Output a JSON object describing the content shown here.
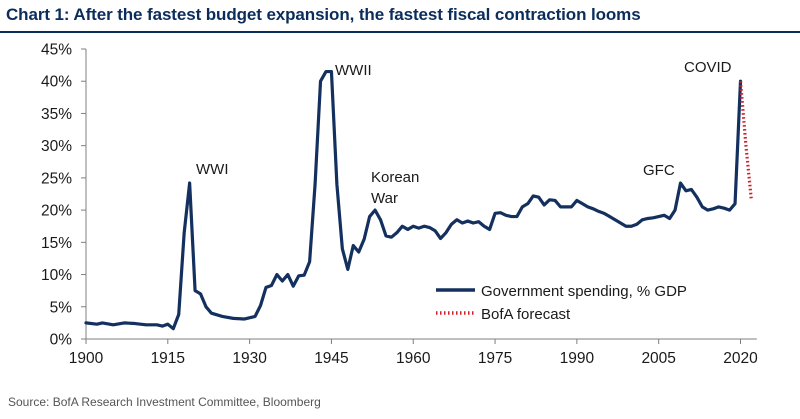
{
  "header": {
    "title": "Chart 1: After the fastest budget expansion, the fastest fiscal contraction looms"
  },
  "footer": {
    "source": "Source:  BofA Research Investment Committee, Bloomberg"
  },
  "colors": {
    "title": "#0b2d5c",
    "series_main": "#14305e",
    "series_forecast": "#d01f2a",
    "axis": "#7f7f7f",
    "text": "#1a1a1a"
  },
  "chart_data": {
    "type": "line",
    "title": "",
    "xlabel": "",
    "ylabel": "",
    "xlim": [
      1900,
      2023
    ],
    "ylim": [
      0,
      45
    ],
    "x_ticks": [
      1900,
      1915,
      1930,
      1945,
      1960,
      1975,
      1990,
      2005,
      2020
    ],
    "x_tick_labels": [
      "1900",
      "1915",
      "1930",
      "1945",
      "1960",
      "1975",
      "1990",
      "2005",
      "2020"
    ],
    "y_ticks": [
      0,
      5,
      10,
      15,
      20,
      25,
      30,
      35,
      40,
      45
    ],
    "y_tick_labels": [
      "0%",
      "5%",
      "10%",
      "15%",
      "20%",
      "25%",
      "30%",
      "35%",
      "40%",
      "45%"
    ],
    "grid": false,
    "legend_position": "bottom-right",
    "series": [
      {
        "name": "Government spending, % GDP",
        "style": "solid",
        "points": [
          [
            1900,
            2.5
          ],
          [
            1902,
            2.3
          ],
          [
            1903,
            2.5
          ],
          [
            1905,
            2.2
          ],
          [
            1907,
            2.5
          ],
          [
            1909,
            2.4
          ],
          [
            1911,
            2.2
          ],
          [
            1913,
            2.2
          ],
          [
            1914,
            2.0
          ],
          [
            1915,
            2.3
          ],
          [
            1916,
            1.6
          ],
          [
            1917,
            3.8
          ],
          [
            1918,
            16.5
          ],
          [
            1919,
            24.2
          ],
          [
            1920,
            7.5
          ],
          [
            1921,
            7.0
          ],
          [
            1922,
            5.0
          ],
          [
            1923,
            4.0
          ],
          [
            1925,
            3.5
          ],
          [
            1927,
            3.2
          ],
          [
            1929,
            3.1
          ],
          [
            1931,
            3.5
          ],
          [
            1932,
            5.2
          ],
          [
            1933,
            8.0
          ],
          [
            1934,
            8.3
          ],
          [
            1935,
            10.0
          ],
          [
            1936,
            9.0
          ],
          [
            1937,
            10.0
          ],
          [
            1938,
            8.2
          ],
          [
            1939,
            9.8
          ],
          [
            1940,
            9.9
          ],
          [
            1941,
            12.0
          ],
          [
            1942,
            24.0
          ],
          [
            1943,
            40.0
          ],
          [
            1944,
            41.5
          ],
          [
            1945,
            41.5
          ],
          [
            1946,
            24.0
          ],
          [
            1947,
            14.0
          ],
          [
            1948,
            10.8
          ],
          [
            1949,
            14.5
          ],
          [
            1950,
            13.5
          ],
          [
            1951,
            15.5
          ],
          [
            1952,
            19.0
          ],
          [
            1953,
            20.0
          ],
          [
            1954,
            18.5
          ],
          [
            1955,
            16.0
          ],
          [
            1956,
            15.8
          ],
          [
            1957,
            16.5
          ],
          [
            1958,
            17.5
          ],
          [
            1959,
            17.0
          ],
          [
            1960,
            17.5
          ],
          [
            1961,
            17.2
          ],
          [
            1962,
            17.5
          ],
          [
            1963,
            17.3
          ],
          [
            1964,
            16.8
          ],
          [
            1965,
            15.6
          ],
          [
            1966,
            16.5
          ],
          [
            1967,
            17.8
          ],
          [
            1968,
            18.5
          ],
          [
            1969,
            18.0
          ],
          [
            1970,
            18.3
          ],
          [
            1971,
            18.0
          ],
          [
            1972,
            18.2
          ],
          [
            1973,
            17.5
          ],
          [
            1974,
            17.0
          ],
          [
            1975,
            19.5
          ],
          [
            1976,
            19.6
          ],
          [
            1977,
            19.2
          ],
          [
            1978,
            19.0
          ],
          [
            1979,
            19.0
          ],
          [
            1980,
            20.5
          ],
          [
            1981,
            21.0
          ],
          [
            1982,
            22.2
          ],
          [
            1983,
            22.0
          ],
          [
            1984,
            20.8
          ],
          [
            1985,
            21.6
          ],
          [
            1986,
            21.5
          ],
          [
            1987,
            20.5
          ],
          [
            1988,
            20.5
          ],
          [
            1989,
            20.5
          ],
          [
            1990,
            21.5
          ],
          [
            1991,
            21.0
          ],
          [
            1992,
            20.5
          ],
          [
            1993,
            20.2
          ],
          [
            1994,
            19.8
          ],
          [
            1995,
            19.5
          ],
          [
            1996,
            19.0
          ],
          [
            1997,
            18.5
          ],
          [
            1998,
            18.0
          ],
          [
            1999,
            17.5
          ],
          [
            2000,
            17.5
          ],
          [
            2001,
            17.8
          ],
          [
            2002,
            18.5
          ],
          [
            2003,
            18.7
          ],
          [
            2004,
            18.8
          ],
          [
            2005,
            19.0
          ],
          [
            2006,
            19.2
          ],
          [
            2007,
            18.7
          ],
          [
            2008,
            20.0
          ],
          [
            2009,
            24.2
          ],
          [
            2010,
            23.0
          ],
          [
            2011,
            23.2
          ],
          [
            2012,
            22.0
          ],
          [
            2013,
            20.5
          ],
          [
            2014,
            20.0
          ],
          [
            2015,
            20.2
          ],
          [
            2016,
            20.5
          ],
          [
            2017,
            20.3
          ],
          [
            2018,
            20.0
          ],
          [
            2019,
            21.0
          ],
          [
            2020,
            40.0
          ]
        ]
      },
      {
        "name": "BofA forecast",
        "style": "dotted",
        "points": [
          [
            2020,
            40.0
          ],
          [
            2021,
            30.0
          ],
          [
            2022,
            21.5
          ]
        ]
      }
    ],
    "annotations": [
      {
        "text": "WWI",
        "x": 1919,
        "y": 24.2
      },
      {
        "text": "WWII",
        "x": 1945,
        "y": 41.5
      },
      {
        "text": "Korean",
        "x": 1952.5,
        "y": 20.0
      },
      {
        "text": "War",
        "x": 1952.5,
        "y": 20.0
      },
      {
        "text": "GFC",
        "x": 2009,
        "y": 24.2
      },
      {
        "text": "COVID",
        "x": 2020,
        "y": 40.0
      }
    ]
  }
}
